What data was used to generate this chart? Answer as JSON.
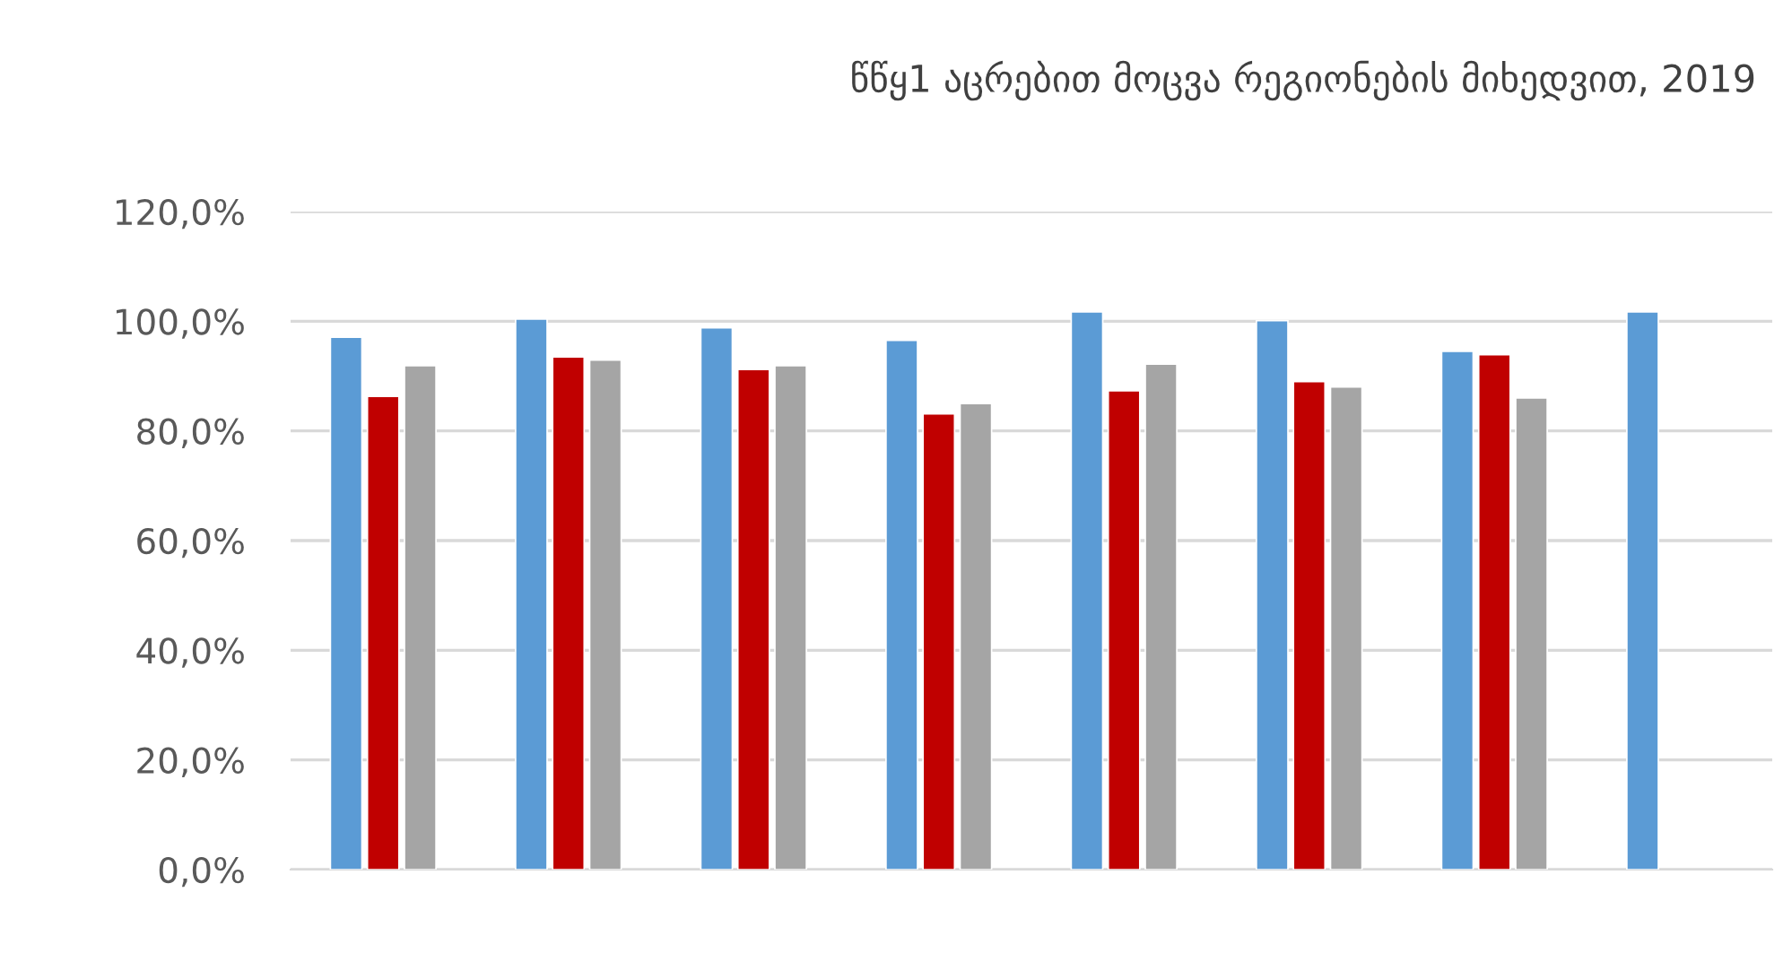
{
  "chart_data": {
    "type": "bar",
    "title": "წწყ1 აცრებით მოცვა რეგიონების მიხედვით, 2019",
    "categories": [
      null,
      null,
      null,
      null,
      null,
      null,
      null,
      null
    ],
    "series": [
      {
        "color": "#5b9bd5",
        "values": [
          97.1,
          100.4,
          98.8,
          96.5,
          101.7,
          100.1,
          94.5,
          101.7
        ]
      },
      {
        "color": "#c00000",
        "values": [
          86.3,
          93.5,
          91.2,
          83.1,
          87.3,
          89.0,
          93.9,
          null
        ]
      },
      {
        "color": "#a5a5a5",
        "values": [
          91.9,
          92.9,
          91.9,
          85.0,
          92.2,
          88.0,
          86.0,
          null
        ]
      }
    ],
    "ylim": [
      0,
      120
    ],
    "yticks": [
      {
        "value": 0,
        "label": "0,0%"
      },
      {
        "value": 20,
        "label": "20,0%"
      },
      {
        "value": 40,
        "label": "40,0%"
      },
      {
        "value": 60,
        "label": "60,0%"
      },
      {
        "value": 80,
        "label": "80,0%"
      },
      {
        "value": 100,
        "label": "100,0%"
      },
      {
        "value": 120,
        "label": "120,0%"
      }
    ],
    "grid": "y",
    "legend": false
  }
}
